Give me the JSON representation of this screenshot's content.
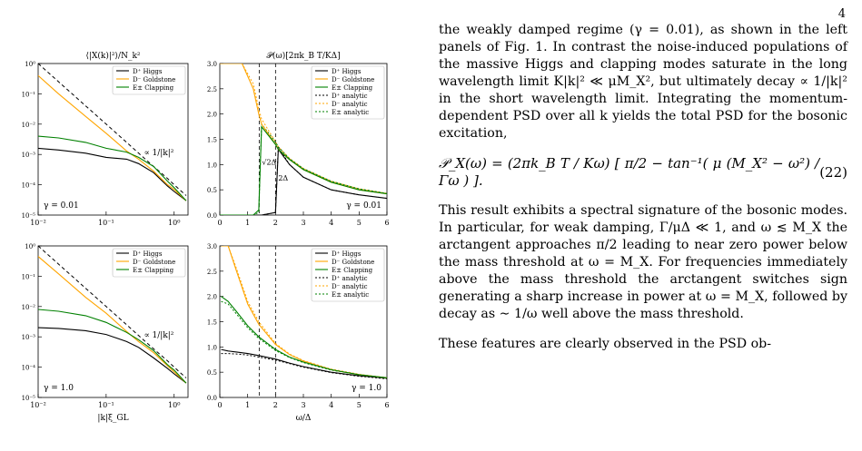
{
  "page_number": "4",
  "text": {
    "para1": "the weakly damped regime (γ = 0.01), as shown in the left panels of Fig. 1. In contrast the noise-induced populations of the massive Higgs and clapping modes saturate in the long wavelength limit K|k|² ≪ μM_X², but ultimately decay ∝ 1/|k|² in the short wavelength limit. Integrating the momentum-dependent PSD over all k yields the total PSD for the bosonic excitation,",
    "equation": "𝒫_X(ω) = (2πk_B T / Kω) [ π/2 − tan⁻¹( μ (M_X² − ω²) / Γω ) ].",
    "equation_number": "(22)",
    "para2": "This result exhibits a spectral signature of the bosonic modes. In particular, for weak damping, Γ/μΔ ≪ 1, and ω ≲ M_X the arctangent approaches π/2 leading to near zero power below the mass threshold at ω = M_X. For frequencies immediately above the mass threshold the arctangent switches sign generating a sharp increase in power at ω = M_X, followed by decay as ∼ 1/ω well above the mass threshold.",
    "para3": "These features are clearly observed in the PSD ob-"
  },
  "chart_data": [
    {
      "type": "line",
      "title": "⟨|X(k)|²⟩/N_k²",
      "xlabel": "",
      "ylabel": "",
      "xscale": "log",
      "yscale": "log",
      "xlim": [
        0.01,
        1.6
      ],
      "ylim": [
        1e-05,
        1
      ],
      "xticks": [
        "10⁻²",
        "10⁻¹",
        "10⁰"
      ],
      "yticks": [
        "10⁻⁵",
        "10⁻⁴",
        "10⁻³",
        "10⁻²",
        "10⁻¹",
        "10⁰"
      ],
      "x": [
        0.01,
        0.02,
        0.05,
        0.1,
        0.2,
        0.3,
        0.5,
        0.8,
        1.0,
        1.5
      ],
      "series": [
        {
          "name": "D⁺ Higgs",
          "color": "#000000",
          "values": [
            0.0016,
            0.0014,
            0.0011,
            0.0008,
            0.0007,
            0.0005,
            0.00025,
            9e-05,
            6e-05,
            3e-05
          ]
        },
        {
          "name": "D⁻ Goldstone",
          "color": "#FFA500",
          "values": [
            0.4,
            0.1,
            0.018,
            0.005,
            0.0013,
            0.0007,
            0.00028,
            0.0001,
            7e-05,
            3e-05
          ]
        },
        {
          "name": "E± Clapping",
          "color": "#008000",
          "values": [
            0.004,
            0.0035,
            0.0025,
            0.0016,
            0.0012,
            0.0008,
            0.0004,
            0.00013,
            8e-05,
            3e-05
          ]
        }
      ],
      "reference": {
        "label": "∝ 1/|k|²",
        "values": [
          1.0,
          0.25,
          0.04,
          0.01,
          0.0025,
          0.0011,
          0.0004,
          0.00016,
          0.0001,
          4.4e-05
        ]
      },
      "annotation": "γ = 0.01",
      "legend": "top-right"
    },
    {
      "type": "line",
      "title": "𝒫(ω)[2πk_B T/KΔ]",
      "xlabel": "",
      "ylabel": "",
      "xlim": [
        0,
        6
      ],
      "ylim": [
        0,
        3
      ],
      "xticks": [
        "0",
        "1",
        "2",
        "3",
        "4",
        "5",
        "6"
      ],
      "yticks": [
        "0.0",
        "0.5",
        "1.0",
        "1.5",
        "2.0",
        "2.5",
        "3.0"
      ],
      "x": [
        0,
        0.8,
        1.2,
        1.4,
        1.5,
        2.0,
        2.1,
        2.5,
        3.0,
        4.0,
        5.0,
        6.0
      ],
      "series": [
        {
          "name": "D⁺ Higgs",
          "color": "#000000",
          "values": [
            0,
            0,
            0,
            0,
            0,
            0.05,
            1.3,
            1.0,
            0.75,
            0.5,
            0.4,
            0.33
          ]
        },
        {
          "name": "D⁻ Goldstone",
          "color": "#FFA500",
          "values": [
            3.0,
            3.0,
            2.5,
            2.0,
            1.8,
            1.4,
            1.3,
            1.1,
            0.9,
            0.65,
            0.5,
            0.42
          ]
        },
        {
          "name": "E± Clapping",
          "color": "#008000",
          "values": [
            0,
            0,
            0,
            0.1,
            1.75,
            1.4,
            1.3,
            1.1,
            0.9,
            0.65,
            0.5,
            0.42
          ]
        }
      ],
      "analytic": [
        {
          "name": "D⁺ analytic",
          "color": "#000000",
          "values": [
            0,
            0,
            0,
            0,
            0,
            0.05,
            1.35,
            1.0,
            0.75,
            0.5,
            0.4,
            0.33
          ]
        },
        {
          "name": "D⁻ analytic",
          "color": "#FFA500",
          "values": [
            3.0,
            3.0,
            2.6,
            2.1,
            1.9,
            1.45,
            1.35,
            1.12,
            0.92,
            0.67,
            0.52,
            0.43
          ]
        },
        {
          "name": "E± analytic",
          "color": "#008000",
          "values": [
            0,
            0,
            0,
            0.05,
            1.8,
            1.45,
            1.35,
            1.12,
            0.92,
            0.67,
            0.52,
            0.43
          ]
        }
      ],
      "vlines": [
        1.414,
        2.0
      ],
      "vline_labels": [
        "√2Δ",
        "2Δ"
      ],
      "annotation": "γ = 0.01",
      "legend": "top-right"
    },
    {
      "type": "line",
      "title": "",
      "xlabel": "|k|ξ_GL",
      "ylabel": "",
      "xscale": "log",
      "yscale": "log",
      "xlim": [
        0.01,
        1.6
      ],
      "ylim": [
        1e-05,
        1
      ],
      "xticks": [
        "10⁻²",
        "10⁻¹",
        "10⁰"
      ],
      "yticks": [
        "10⁻⁵",
        "10⁻⁴",
        "10⁻³",
        "10⁻²",
        "10⁻¹",
        "10⁰"
      ],
      "x": [
        0.01,
        0.02,
        0.05,
        0.1,
        0.2,
        0.3,
        0.5,
        0.8,
        1.0,
        1.5
      ],
      "series": [
        {
          "name": "D⁺ Higgs",
          "color": "#000000",
          "values": [
            0.002,
            0.0019,
            0.0016,
            0.0012,
            0.0007,
            0.00045,
            0.0002,
            9e-05,
            6e-05,
            3e-05
          ]
        },
        {
          "name": "D⁻ Goldstone",
          "color": "#FFA500",
          "values": [
            0.45,
            0.12,
            0.02,
            0.006,
            0.0015,
            0.0007,
            0.0003,
            0.00011,
            7e-05,
            3e-05
          ]
        },
        {
          "name": "E± Clapping",
          "color": "#008000",
          "values": [
            0.008,
            0.007,
            0.005,
            0.003,
            0.0014,
            0.0008,
            0.00035,
            0.00012,
            8e-05,
            3e-05
          ]
        }
      ],
      "reference": {
        "label": "∝ 1/|k|²",
        "values": [
          1.0,
          0.25,
          0.04,
          0.01,
          0.0025,
          0.0011,
          0.0004,
          0.00016,
          0.0001,
          4.4e-05
        ]
      },
      "annotation": "γ = 1.0",
      "legend": "top-right"
    },
    {
      "type": "line",
      "title": "",
      "xlabel": "ω/Δ",
      "ylabel": "",
      "xlim": [
        0,
        6
      ],
      "ylim": [
        0,
        3
      ],
      "xticks": [
        "0",
        "1",
        "2",
        "3",
        "4",
        "5",
        "6"
      ],
      "yticks": [
        "0.0",
        "0.5",
        "1.0",
        "1.5",
        "2.0",
        "2.5",
        "3.0"
      ],
      "x": [
        0.05,
        0.3,
        0.6,
        1.0,
        1.4,
        2.0,
        2.5,
        3.0,
        4.0,
        5.0,
        6.0
      ],
      "series": [
        {
          "name": "D⁺ Higgs",
          "color": "#000000",
          "values": [
            0.95,
            0.92,
            0.9,
            0.87,
            0.83,
            0.76,
            0.68,
            0.61,
            0.5,
            0.43,
            0.38
          ]
        },
        {
          "name": "D⁻ Goldstone",
          "color": "#FFA500",
          "values": [
            3.0,
            3.0,
            2.5,
            1.85,
            1.45,
            1.05,
            0.85,
            0.72,
            0.55,
            0.45,
            0.39
          ]
        },
        {
          "name": "E± Clapping",
          "color": "#008000",
          "values": [
            2.0,
            1.9,
            1.7,
            1.42,
            1.2,
            0.95,
            0.8,
            0.7,
            0.55,
            0.45,
            0.39
          ]
        }
      ],
      "analytic": [
        {
          "name": "D⁺ analytic",
          "color": "#000000",
          "values": [
            0.87,
            0.87,
            0.86,
            0.84,
            0.8,
            0.74,
            0.67,
            0.6,
            0.49,
            0.42,
            0.37
          ]
        },
        {
          "name": "D⁻ analytic",
          "color": "#FFA500",
          "values": [
            3.0,
            3.0,
            2.55,
            1.9,
            1.5,
            1.07,
            0.86,
            0.73,
            0.56,
            0.46,
            0.39
          ]
        },
        {
          "name": "E± analytic",
          "color": "#008000",
          "values": [
            1.9,
            1.85,
            1.65,
            1.38,
            1.17,
            0.93,
            0.79,
            0.69,
            0.54,
            0.45,
            0.39
          ]
        }
      ],
      "vlines": [
        1.414,
        2.0
      ],
      "annotation": "γ = 1.0",
      "legend": "top-right"
    }
  ]
}
